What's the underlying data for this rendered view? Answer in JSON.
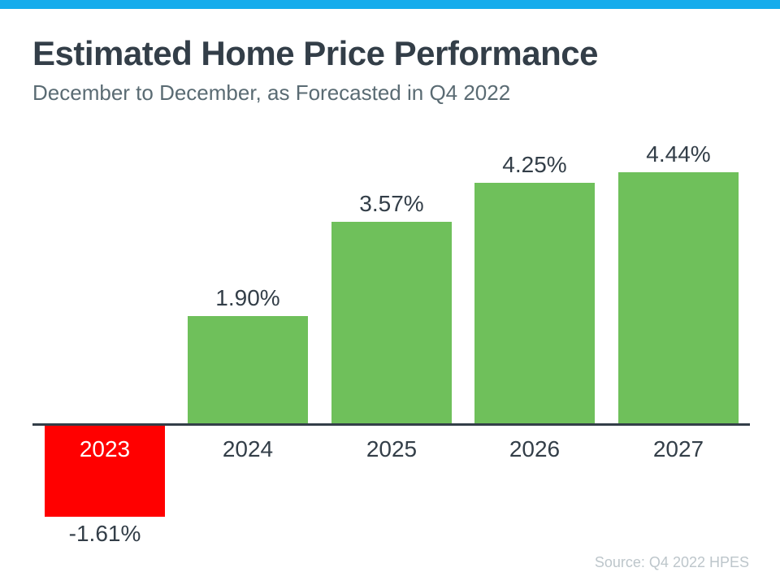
{
  "page": {
    "accent_color": "#16ACEC",
    "background_color": "#FFFFFF"
  },
  "header": {
    "title": "Estimated Home Price Performance",
    "subtitle": "December to December, as Forecasted in Q4 2022"
  },
  "footer": {
    "source": "Source: Q4 2022 HPES"
  },
  "chart_data": {
    "type": "bar",
    "title": "Estimated Home Price Performance",
    "subtitle": "December to December, as Forecasted in Q4 2022",
    "categories": [
      "2023",
      "2024",
      "2025",
      "2026",
      "2027"
    ],
    "values": [
      -1.61,
      1.9,
      3.57,
      4.25,
      4.44
    ],
    "value_labels": [
      "-1.61%",
      "1.90%",
      "3.57%",
      "4.25%",
      "4.44%"
    ],
    "positive_color": "#6FC05B",
    "negative_color": "#FF0000",
    "label_color": "#333E48",
    "negative_category_label_color": "#FFFFFF",
    "axis_color": "#333E48",
    "ylim": [
      -2.8,
      5.2
    ],
    "grid": false,
    "legend": null,
    "baseline": 0,
    "source": "Source: Q4 2022 HPES"
  }
}
